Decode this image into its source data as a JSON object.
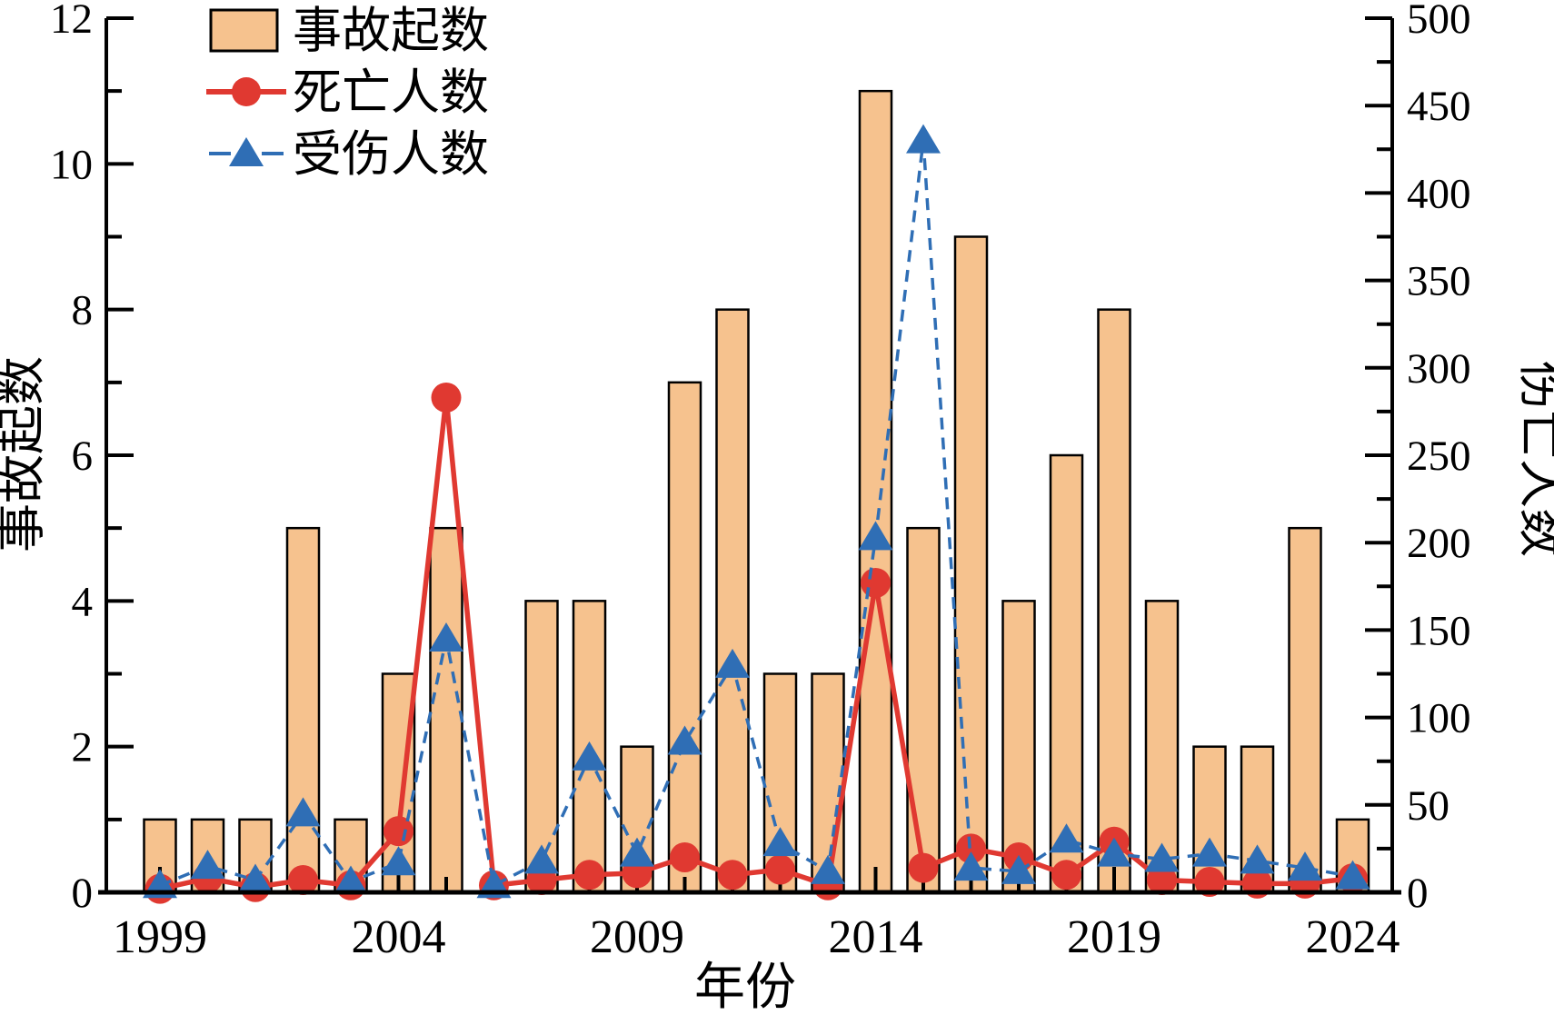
{
  "chart_data": {
    "type": "combo",
    "title": "",
    "xlabel": "年份",
    "x": [
      1999,
      2000,
      2001,
      2002,
      2003,
      2004,
      2005,
      2006,
      2007,
      2008,
      2009,
      2010,
      2011,
      2012,
      2013,
      2014,
      2015,
      2016,
      2017,
      2018,
      2019,
      2020,
      2021,
      2022,
      2023,
      2024
    ],
    "series": [
      {
        "name": "事故起数",
        "type": "bar",
        "axis": "left",
        "color": "#F6C28E",
        "edge_color": "#000000",
        "values": [
          1,
          1,
          1,
          5,
          1,
          3,
          5,
          0,
          4,
          4,
          2,
          7,
          8,
          3,
          3,
          11,
          5,
          9,
          4,
          6,
          8,
          4,
          2,
          2,
          5,
          1
        ]
      },
      {
        "name": "死亡人数",
        "type": "line",
        "axis": "right",
        "line_style": "solid",
        "color": "#E03931",
        "marker": "circle",
        "values": [
          2,
          8,
          3,
          7,
          4,
          35,
          283,
          4,
          7,
          10,
          11,
          20,
          10,
          13,
          4,
          177,
          14,
          25,
          20,
          10,
          29,
          7,
          6,
          5,
          5,
          8
        ]
      },
      {
        "name": "受伤人数",
        "type": "line",
        "axis": "right",
        "line_style": "dashed",
        "color": "#2F6EB5",
        "marker": "triangle",
        "values": [
          4,
          15,
          7,
          45,
          6,
          17,
          145,
          4,
          18,
          77,
          22,
          86,
          130,
          28,
          12,
          203,
          430,
          14,
          12,
          30,
          22,
          19,
          22,
          18,
          14,
          9
        ]
      }
    ],
    "axes": {
      "left": {
        "label": "事故起数",
        "min": 0,
        "max": 12,
        "major_step": 2,
        "minor_step": 1,
        "ticks": [
          0,
          2,
          4,
          6,
          8,
          10,
          12
        ]
      },
      "right": {
        "label": "伤亡人数",
        "min": 0,
        "max": 500,
        "major_step": 50,
        "minor_step": 25,
        "ticks": [
          0,
          50,
          100,
          150,
          200,
          250,
          300,
          350,
          400,
          450,
          500
        ]
      },
      "x": {
        "label": "年份",
        "min": 1999,
        "max": 2024,
        "labeled_ticks": [
          1999,
          2004,
          2009,
          2014,
          2019,
          2024
        ]
      }
    },
    "legend": {
      "position": "top-left-inside",
      "frame": false,
      "items": [
        "事故起数",
        "死亡人数",
        "受伤人数"
      ]
    },
    "grid": false,
    "colors": {
      "bar_fill": "#F6C28E",
      "bar_edge": "#000000",
      "deaths_line": "#E03931",
      "injuries_line": "#2F6EB5",
      "axis": "#000000",
      "background": "#FFFFFF"
    }
  }
}
